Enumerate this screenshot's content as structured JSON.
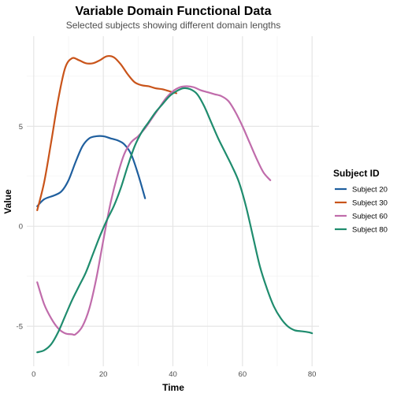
{
  "chart_data": {
    "type": "line",
    "title": "Variable Domain Functional Data",
    "subtitle": "Selected subjects showing different domain lengths",
    "xlabel": "Time",
    "ylabel": "Value",
    "xlim": [
      -2,
      82
    ],
    "ylim": [
      -7,
      9.5
    ],
    "xticks": [
      0,
      20,
      40,
      60,
      80
    ],
    "yticks": [
      -5,
      0,
      5
    ],
    "grid": true,
    "legend": {
      "title": "Subject ID",
      "position": "right"
    },
    "series": [
      {
        "name": "Subject 20",
        "color": "#1f5f9e",
        "points": [
          [
            1,
            1.0
          ],
          [
            3,
            1.35
          ],
          [
            6,
            1.55
          ],
          [
            8,
            1.75
          ],
          [
            10,
            2.3
          ],
          [
            12,
            3.2
          ],
          [
            14,
            4.0
          ],
          [
            16,
            4.4
          ],
          [
            18,
            4.5
          ],
          [
            20,
            4.5
          ],
          [
            22,
            4.4
          ],
          [
            24,
            4.3
          ],
          [
            26,
            4.1
          ],
          [
            28,
            3.6
          ],
          [
            30,
            2.6
          ],
          [
            32,
            1.4
          ]
        ]
      },
      {
        "name": "Subject 30",
        "color": "#c9541a",
        "points": [
          [
            1,
            0.8
          ],
          [
            3,
            2.2
          ],
          [
            5,
            4.2
          ],
          [
            7,
            6.3
          ],
          [
            9,
            7.9
          ],
          [
            11,
            8.4
          ],
          [
            13,
            8.3
          ],
          [
            15,
            8.15
          ],
          [
            17,
            8.15
          ],
          [
            19,
            8.3
          ],
          [
            21,
            8.5
          ],
          [
            23,
            8.45
          ],
          [
            25,
            8.1
          ],
          [
            27,
            7.6
          ],
          [
            29,
            7.2
          ],
          [
            31,
            7.05
          ],
          [
            33,
            7.0
          ],
          [
            35,
            6.9
          ],
          [
            37,
            6.85
          ],
          [
            39,
            6.75
          ],
          [
            41,
            6.65
          ]
        ]
      },
      {
        "name": "Subject 60",
        "color": "#c06cab",
        "points": [
          [
            1,
            -2.8
          ],
          [
            3,
            -3.9
          ],
          [
            5,
            -4.6
          ],
          [
            7,
            -5.1
          ],
          [
            9,
            -5.35
          ],
          [
            11,
            -5.4
          ],
          [
            12,
            -5.4
          ],
          [
            14,
            -5.0
          ],
          [
            16,
            -4.1
          ],
          [
            18,
            -2.6
          ],
          [
            20,
            -0.7
          ],
          [
            22,
            1.1
          ],
          [
            24,
            2.5
          ],
          [
            26,
            3.6
          ],
          [
            28,
            4.2
          ],
          [
            30,
            4.5
          ],
          [
            32,
            4.9
          ],
          [
            34,
            5.4
          ],
          [
            36,
            5.9
          ],
          [
            38,
            6.4
          ],
          [
            40,
            6.75
          ],
          [
            42,
            6.95
          ],
          [
            44,
            7.0
          ],
          [
            46,
            6.95
          ],
          [
            48,
            6.8
          ],
          [
            50,
            6.7
          ],
          [
            52,
            6.6
          ],
          [
            54,
            6.5
          ],
          [
            56,
            6.25
          ],
          [
            58,
            5.7
          ],
          [
            60,
            5.0
          ],
          [
            62,
            4.2
          ],
          [
            64,
            3.4
          ],
          [
            66,
            2.7
          ],
          [
            68,
            2.3
          ]
        ]
      },
      {
        "name": "Subject 80",
        "color": "#1f8c6e",
        "points": [
          [
            1,
            -6.3
          ],
          [
            3,
            -6.2
          ],
          [
            5,
            -5.9
          ],
          [
            7,
            -5.3
          ],
          [
            9,
            -4.5
          ],
          [
            11,
            -3.7
          ],
          [
            13,
            -3.0
          ],
          [
            15,
            -2.3
          ],
          [
            17,
            -1.4
          ],
          [
            19,
            -0.5
          ],
          [
            21,
            0.3
          ],
          [
            23,
            1.0
          ],
          [
            25,
            1.9
          ],
          [
            27,
            3.0
          ],
          [
            29,
            4.0
          ],
          [
            31,
            4.7
          ],
          [
            33,
            5.2
          ],
          [
            35,
            5.7
          ],
          [
            37,
            6.1
          ],
          [
            39,
            6.5
          ],
          [
            41,
            6.75
          ],
          [
            43,
            6.9
          ],
          [
            45,
            6.85
          ],
          [
            47,
            6.6
          ],
          [
            49,
            6.0
          ],
          [
            51,
            5.2
          ],
          [
            53,
            4.4
          ],
          [
            55,
            3.7
          ],
          [
            57,
            3.0
          ],
          [
            59,
            2.2
          ],
          [
            61,
            1.0
          ],
          [
            63,
            -0.5
          ],
          [
            65,
            -2.0
          ],
          [
            67,
            -3.1
          ],
          [
            69,
            -4.0
          ],
          [
            71,
            -4.6
          ],
          [
            73,
            -5.0
          ],
          [
            75,
            -5.2
          ],
          [
            77,
            -5.25
          ],
          [
            79,
            -5.3
          ],
          [
            80,
            -5.35
          ]
        ]
      }
    ]
  }
}
